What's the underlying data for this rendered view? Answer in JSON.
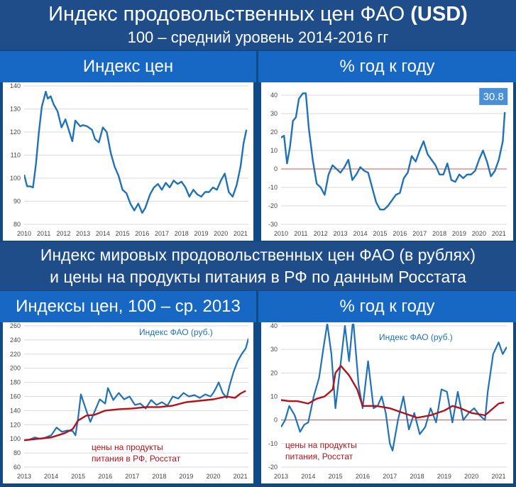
{
  "header": {
    "title_main": "Индекс продовольственных цен ФАО ",
    "title_bold": "(USD)",
    "subtitle": "100 – средний уровень 2014-2016 гг"
  },
  "section2": {
    "line1": "Индекс мировых продовольственных цен ФАО (в рублях)",
    "line2": "и цены на продукты питания в РФ по данным Росстата"
  },
  "panels": {
    "p1_title": "Индекс цен",
    "p2_title": "% год к году",
    "p3_title": "Индексы цен, 100 – ср. 2013",
    "p4_title": "% год к году"
  },
  "colors": {
    "blue": "#1f72b8",
    "red": "#b3121b",
    "zero_line": "#d9534f",
    "badge": "#4a90d9"
  },
  "chart_data": [
    {
      "id": "fao_usd_index",
      "type": "line",
      "x_ticks": [
        "2010",
        "2011",
        "2012",
        "2013",
        "2014",
        "2015",
        "2016",
        "2017",
        "2018",
        "2019",
        "2020",
        "2021"
      ],
      "y_ticks": [
        "80",
        "90",
        "100",
        "110",
        "120",
        "130",
        "140"
      ],
      "xlim": [
        2010,
        2021.4
      ],
      "ylim": [
        80,
        140
      ],
      "grid": "horizontal",
      "series": [
        {
          "color": "#1f72b8",
          "x": [
            2010.0,
            2010.15,
            2010.3,
            2010.45,
            2010.6,
            2010.75,
            2010.9,
            2011.1,
            2011.2,
            2011.35,
            2011.5,
            2011.7,
            2011.9,
            2012.1,
            2012.3,
            2012.45,
            2012.6,
            2012.7,
            2012.85,
            2013.0,
            2013.2,
            2013.45,
            2013.6,
            2013.8,
            2014.0,
            2014.2,
            2014.4,
            2014.6,
            2014.8,
            2015.0,
            2015.2,
            2015.4,
            2015.6,
            2015.8,
            2016.0,
            2016.15,
            2016.4,
            2016.6,
            2016.8,
            2017.0,
            2017.2,
            2017.4,
            2017.6,
            2017.8,
            2018.0,
            2018.2,
            2018.4,
            2018.6,
            2018.8,
            2019.0,
            2019.2,
            2019.4,
            2019.6,
            2019.8,
            2020.0,
            2020.2,
            2020.4,
            2020.6,
            2020.8,
            2021.0,
            2021.15,
            2021.3
          ],
          "y": [
            101.5,
            96.5,
            96.5,
            96,
            106,
            120,
            131,
            137.5,
            134.5,
            135.5,
            132,
            129,
            122,
            125.5,
            120,
            116,
            125,
            124,
            122.5,
            123,
            122.5,
            121,
            117,
            115.5,
            122,
            120,
            111,
            105,
            101,
            95,
            93.5,
            89,
            86,
            89,
            85,
            87,
            93,
            96,
            97.5,
            95,
            98,
            96,
            99,
            97.5,
            98.5,
            96,
            92,
            95,
            93,
            92,
            94,
            94,
            96,
            95,
            99,
            102,
            94,
            92,
            97,
            105,
            115,
            121
          ]
        }
      ]
    },
    {
      "id": "fao_usd_yoy",
      "type": "line",
      "x_ticks": [
        "2010",
        "2011",
        "2012",
        "2013",
        "2014",
        "2015",
        "2016",
        "2017",
        "2018",
        "2019",
        "2020",
        "2021"
      ],
      "y_ticks": [
        "-30",
        "-20",
        "-10",
        "0",
        "10",
        "20",
        "30",
        "40"
      ],
      "xlim": [
        2010,
        2021.4
      ],
      "ylim": [
        -30,
        45
      ],
      "grid": "horizontal",
      "annotation": "30.8",
      "series": [
        {
          "color": "#1f72b8",
          "x": [
            2010.0,
            2010.15,
            2010.3,
            2010.45,
            2010.6,
            2010.75,
            2010.9,
            2011.1,
            2011.25,
            2011.4,
            2011.6,
            2011.8,
            2012.0,
            2012.2,
            2012.4,
            2012.6,
            2012.8,
            2013.0,
            2013.2,
            2013.4,
            2013.6,
            2013.8,
            2014.0,
            2014.2,
            2014.4,
            2014.6,
            2014.8,
            2015.0,
            2015.2,
            2015.4,
            2015.6,
            2015.8,
            2016.0,
            2016.2,
            2016.4,
            2016.6,
            2016.8,
            2017.0,
            2017.2,
            2017.4,
            2017.6,
            2017.8,
            2018.0,
            2018.2,
            2018.4,
            2018.6,
            2018.8,
            2019.0,
            2019.2,
            2019.4,
            2019.6,
            2019.8,
            2020.0,
            2020.2,
            2020.4,
            2020.6,
            2020.8,
            2021.0,
            2021.2,
            2021.3
          ],
          "y": [
            17,
            18,
            3,
            12,
            26,
            28,
            38,
            41,
            41,
            22,
            5,
            -8,
            -10,
            -14,
            -3,
            2,
            0,
            -2,
            1,
            5,
            -6,
            -3,
            1,
            -1,
            -2,
            -10,
            -18,
            -22,
            -22,
            -20,
            -17,
            -14,
            -13,
            -5,
            -2,
            7,
            4,
            10,
            15,
            8,
            5,
            2,
            -3,
            -3,
            3,
            -6,
            -7,
            -3,
            -5,
            -3,
            -3,
            -1,
            5,
            10,
            4,
            -4,
            -1,
            5,
            15,
            30.8
          ]
        }
      ]
    },
    {
      "id": "fao_rub_vs_rosstat_index",
      "type": "line",
      "x_ticks": [
        "2013",
        "2014",
        "2015",
        "2016",
        "2017",
        "2018",
        "2019",
        "2020",
        "2021"
      ],
      "y_ticks": [
        "60",
        "80",
        "100",
        "120",
        "140",
        "160",
        "180",
        "200",
        "220",
        "240",
        "260"
      ],
      "xlim": [
        2013,
        2021.3
      ],
      "ylim": [
        60,
        260
      ],
      "grid": "horizontal",
      "series": [
        {
          "name": "Индекс ФАО (руб.)",
          "color": "#1f72b8",
          "x": [
            2013.0,
            2013.2,
            2013.4,
            2013.6,
            2013.8,
            2014.0,
            2014.2,
            2014.4,
            2014.6,
            2014.8,
            2014.9,
            2015.0,
            2015.1,
            2015.3,
            2015.45,
            2015.6,
            2015.8,
            2016.0,
            2016.1,
            2016.3,
            2016.5,
            2016.7,
            2016.9,
            2017.1,
            2017.3,
            2017.5,
            2017.7,
            2017.9,
            2018.1,
            2018.3,
            2018.5,
            2018.7,
            2018.9,
            2019.1,
            2019.3,
            2019.5,
            2019.7,
            2019.9,
            2020.0,
            2020.1,
            2020.2,
            2020.35,
            2020.5,
            2020.6,
            2020.75,
            2020.9,
            2021.05,
            2021.2,
            2021.3
          ],
          "y": [
            98,
            99,
            102,
            100,
            102,
            105,
            116,
            110,
            112,
            111,
            105,
            130,
            163,
            140,
            124,
            138,
            156,
            150,
            172,
            155,
            165,
            156,
            160,
            148,
            150,
            143,
            155,
            148,
            152,
            147,
            160,
            157,
            165,
            160,
            162,
            158,
            163,
            160,
            165,
            172,
            180,
            165,
            158,
            175,
            195,
            210,
            220,
            228,
            242
          ]
        },
        {
          "name": "цены на продукты питания в РФ, Росстат",
          "color": "#b3121b",
          "x": [
            2013.0,
            2013.5,
            2014.0,
            2014.5,
            2014.8,
            2015.0,
            2015.3,
            2015.6,
            2016.0,
            2016.5,
            2017.0,
            2017.5,
            2018.0,
            2018.5,
            2019.0,
            2019.5,
            2020.0,
            2020.5,
            2020.8,
            2021.0,
            2021.2
          ],
          "y": [
            98,
            100,
            102,
            108,
            114,
            126,
            133,
            134,
            140,
            142,
            143,
            145,
            145,
            147,
            152,
            154,
            156,
            160,
            158,
            164,
            168
          ]
        }
      ]
    },
    {
      "id": "fao_rub_vs_rosstat_yoy",
      "type": "line",
      "x_ticks": [
        "2013",
        "2014",
        "2015",
        "2016",
        "2017",
        "2018",
        "2019",
        "2020",
        "2021"
      ],
      "y_ticks": [
        "-20",
        "-10",
        "0",
        "10",
        "20",
        "30",
        "40"
      ],
      "xlim": [
        2013,
        2021.3
      ],
      "ylim": [
        -20,
        40
      ],
      "grid": "horizontal",
      "series": [
        {
          "name": "Индекс ФАО (руб.)",
          "color": "#1f72b8",
          "x": [
            2013.0,
            2013.15,
            2013.3,
            2013.5,
            2013.7,
            2013.85,
            2014.0,
            2014.2,
            2014.4,
            2014.55,
            2014.7,
            2014.85,
            2015.0,
            2015.15,
            2015.35,
            2015.5,
            2015.65,
            2015.85,
            2016.0,
            2016.2,
            2016.4,
            2016.55,
            2016.7,
            2016.85,
            2017.0,
            2017.1,
            2017.3,
            2017.5,
            2017.7,
            2017.9,
            2018.1,
            2018.3,
            2018.5,
            2018.7,
            2018.9,
            2019.1,
            2019.3,
            2019.5,
            2019.7,
            2019.9,
            2020.1,
            2020.3,
            2020.5,
            2020.6,
            2020.8,
            2021.0,
            2021.15,
            2021.3
          ],
          "y": [
            -3,
            0,
            6,
            2,
            -5,
            -2,
            -1,
            10,
            18,
            30,
            41,
            28,
            5,
            20,
            40,
            25,
            43,
            15,
            5,
            25,
            5,
            6,
            10,
            3,
            -10,
            -13,
            0,
            10,
            -4,
            3,
            -6,
            -3,
            5,
            -1,
            13,
            12,
            -1,
            12,
            0,
            3,
            5,
            2,
            0,
            12,
            28,
            33,
            28,
            31
          ]
        },
        {
          "name": "цены на продукты питания в РФ, Росстат",
          "color": "#b3121b",
          "x": [
            2013.0,
            2013.3,
            2013.6,
            2014.0,
            2014.3,
            2014.6,
            2014.9,
            2015.0,
            2015.2,
            2015.5,
            2015.8,
            2016.0,
            2016.5,
            2017.0,
            2017.5,
            2018.0,
            2018.5,
            2019.0,
            2019.3,
            2019.6,
            2020.0,
            2020.5,
            2020.8,
            2021.0,
            2021.2
          ],
          "y": [
            8.5,
            8,
            8,
            7,
            9,
            10,
            13,
            20,
            23,
            19,
            13,
            6,
            6,
            5,
            3,
            1,
            2,
            4,
            6,
            5,
            3,
            2,
            5,
            7,
            7.5
          ]
        }
      ]
    }
  ]
}
